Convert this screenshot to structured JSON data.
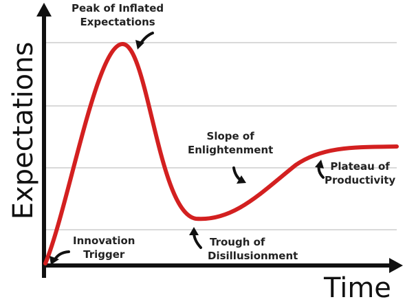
{
  "diagram": {
    "axes": {
      "x_label": "Time",
      "y_label": "Expectations"
    },
    "phases": [
      {
        "id": "innovation-trigger",
        "line1": "Innovation",
        "line2": "Trigger"
      },
      {
        "id": "peak",
        "line1": "Peak of Inflated",
        "line2": "Expectations"
      },
      {
        "id": "trough",
        "line1": "Trough of",
        "line2": "Disillusionment"
      },
      {
        "id": "slope",
        "line1": "Slope of",
        "line2": "Enlightenment"
      },
      {
        "id": "plateau",
        "line1": "Plateau of",
        "line2": "Productivity"
      }
    ],
    "colors": {
      "curve": "#d32020",
      "axis": "#111111",
      "grid": "#d9d9d9",
      "arrow": "#111111"
    },
    "gridlines": 4
  }
}
